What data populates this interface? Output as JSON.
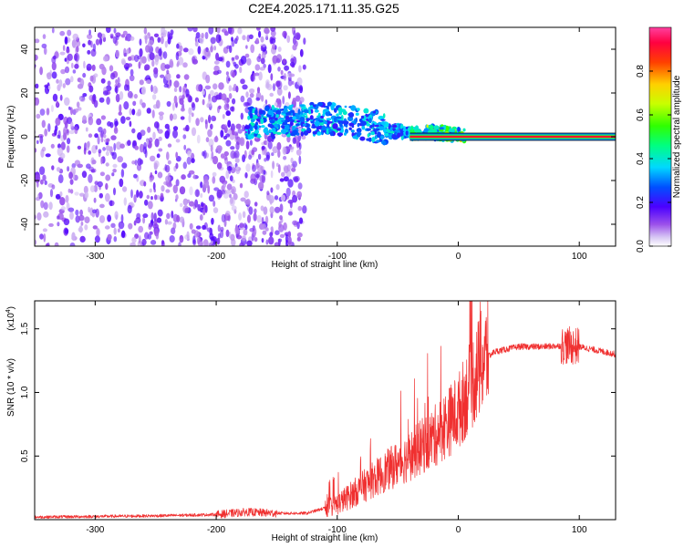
{
  "figure": {
    "title": "C2E4.2025.171.11.35.G25"
  },
  "colors": {
    "snr_line": "#f03030",
    "background": "#ffffff",
    "axis": "#000000"
  },
  "chart_data": [
    {
      "type": "heatmap",
      "name": "spectrogram",
      "xlabel": "Height of straight line (km)",
      "ylabel": "Frequency (Hz)",
      "xlim": [
        -350,
        130
      ],
      "ylim": [
        -50,
        50
      ],
      "xticks": [
        -300,
        -200,
        -100,
        0,
        100
      ],
      "xtick_labels": [
        "-300",
        "-200",
        "-100",
        "0",
        "100"
      ],
      "yticks": [
        -40,
        -20,
        0,
        20,
        40
      ],
      "ytick_labels": [
        "-40",
        "-20",
        "0",
        "20",
        "40"
      ],
      "grid": false,
      "colorbar": {
        "label": "Normalized spectral amplitude",
        "range": [
          0,
          1
        ],
        "ticks": [
          0,
          0.2,
          0.4,
          0.6,
          0.8
        ],
        "tick_labels": [
          "0.0",
          "0.2",
          "0.4",
          "0.6",
          "0.8"
        ],
        "colormap": "rainbow (white-violet-blue-cyan-green-yellow-red-magenta)"
      },
      "features": [
        {
          "kind": "scattered low-amplitude noise",
          "x_range": [
            -350,
            -140
          ],
          "freq_range": [
            -50,
            50
          ],
          "amplitude": 0.15
        },
        {
          "kind": "signal band",
          "x_range": [
            -175,
            -10
          ],
          "freq_center_start": 6,
          "freq_center_end": 1,
          "amplitude_range": [
            0.2,
            0.45
          ]
        },
        {
          "kind": "tracked carrier line",
          "x_range": [
            -40,
            130
          ],
          "frequency": 0,
          "amplitude": 0.9
        }
      ]
    },
    {
      "type": "line",
      "name": "snr",
      "xlabel": "Height of straight line (km)",
      "ylabel": "SNR (10 * v/v)",
      "y_multiplier_label": "(x10",
      "y_multiplier_exp": "4",
      "y_multiplier_close": ")",
      "xlim": [
        -350,
        130
      ],
      "ylim": [
        0,
        1.72
      ],
      "xticks": [
        -300,
        -200,
        -100,
        0,
        100
      ],
      "xtick_labels": [
        "-300",
        "-200",
        "-100",
        "0",
        "100"
      ],
      "yticks": [
        0.5,
        1.0,
        1.5
      ],
      "ytick_labels": [
        "0.5",
        "1.0",
        "1.5"
      ],
      "grid": false,
      "series": [
        {
          "x": [
            -350,
            -300,
            -250,
            -200,
            -175,
            -150,
            -125,
            -100,
            -80,
            -60,
            -40,
            -20,
            0,
            10,
            20,
            30,
            50,
            70,
            90,
            100,
            110,
            130
          ],
          "y": [
            0.02,
            0.025,
            0.03,
            0.04,
            0.06,
            0.05,
            0.05,
            0.12,
            0.25,
            0.38,
            0.5,
            0.65,
            0.85,
            1.05,
            1.25,
            1.32,
            1.36,
            1.36,
            1.37,
            1.36,
            1.34,
            1.3
          ]
        }
      ]
    }
  ]
}
